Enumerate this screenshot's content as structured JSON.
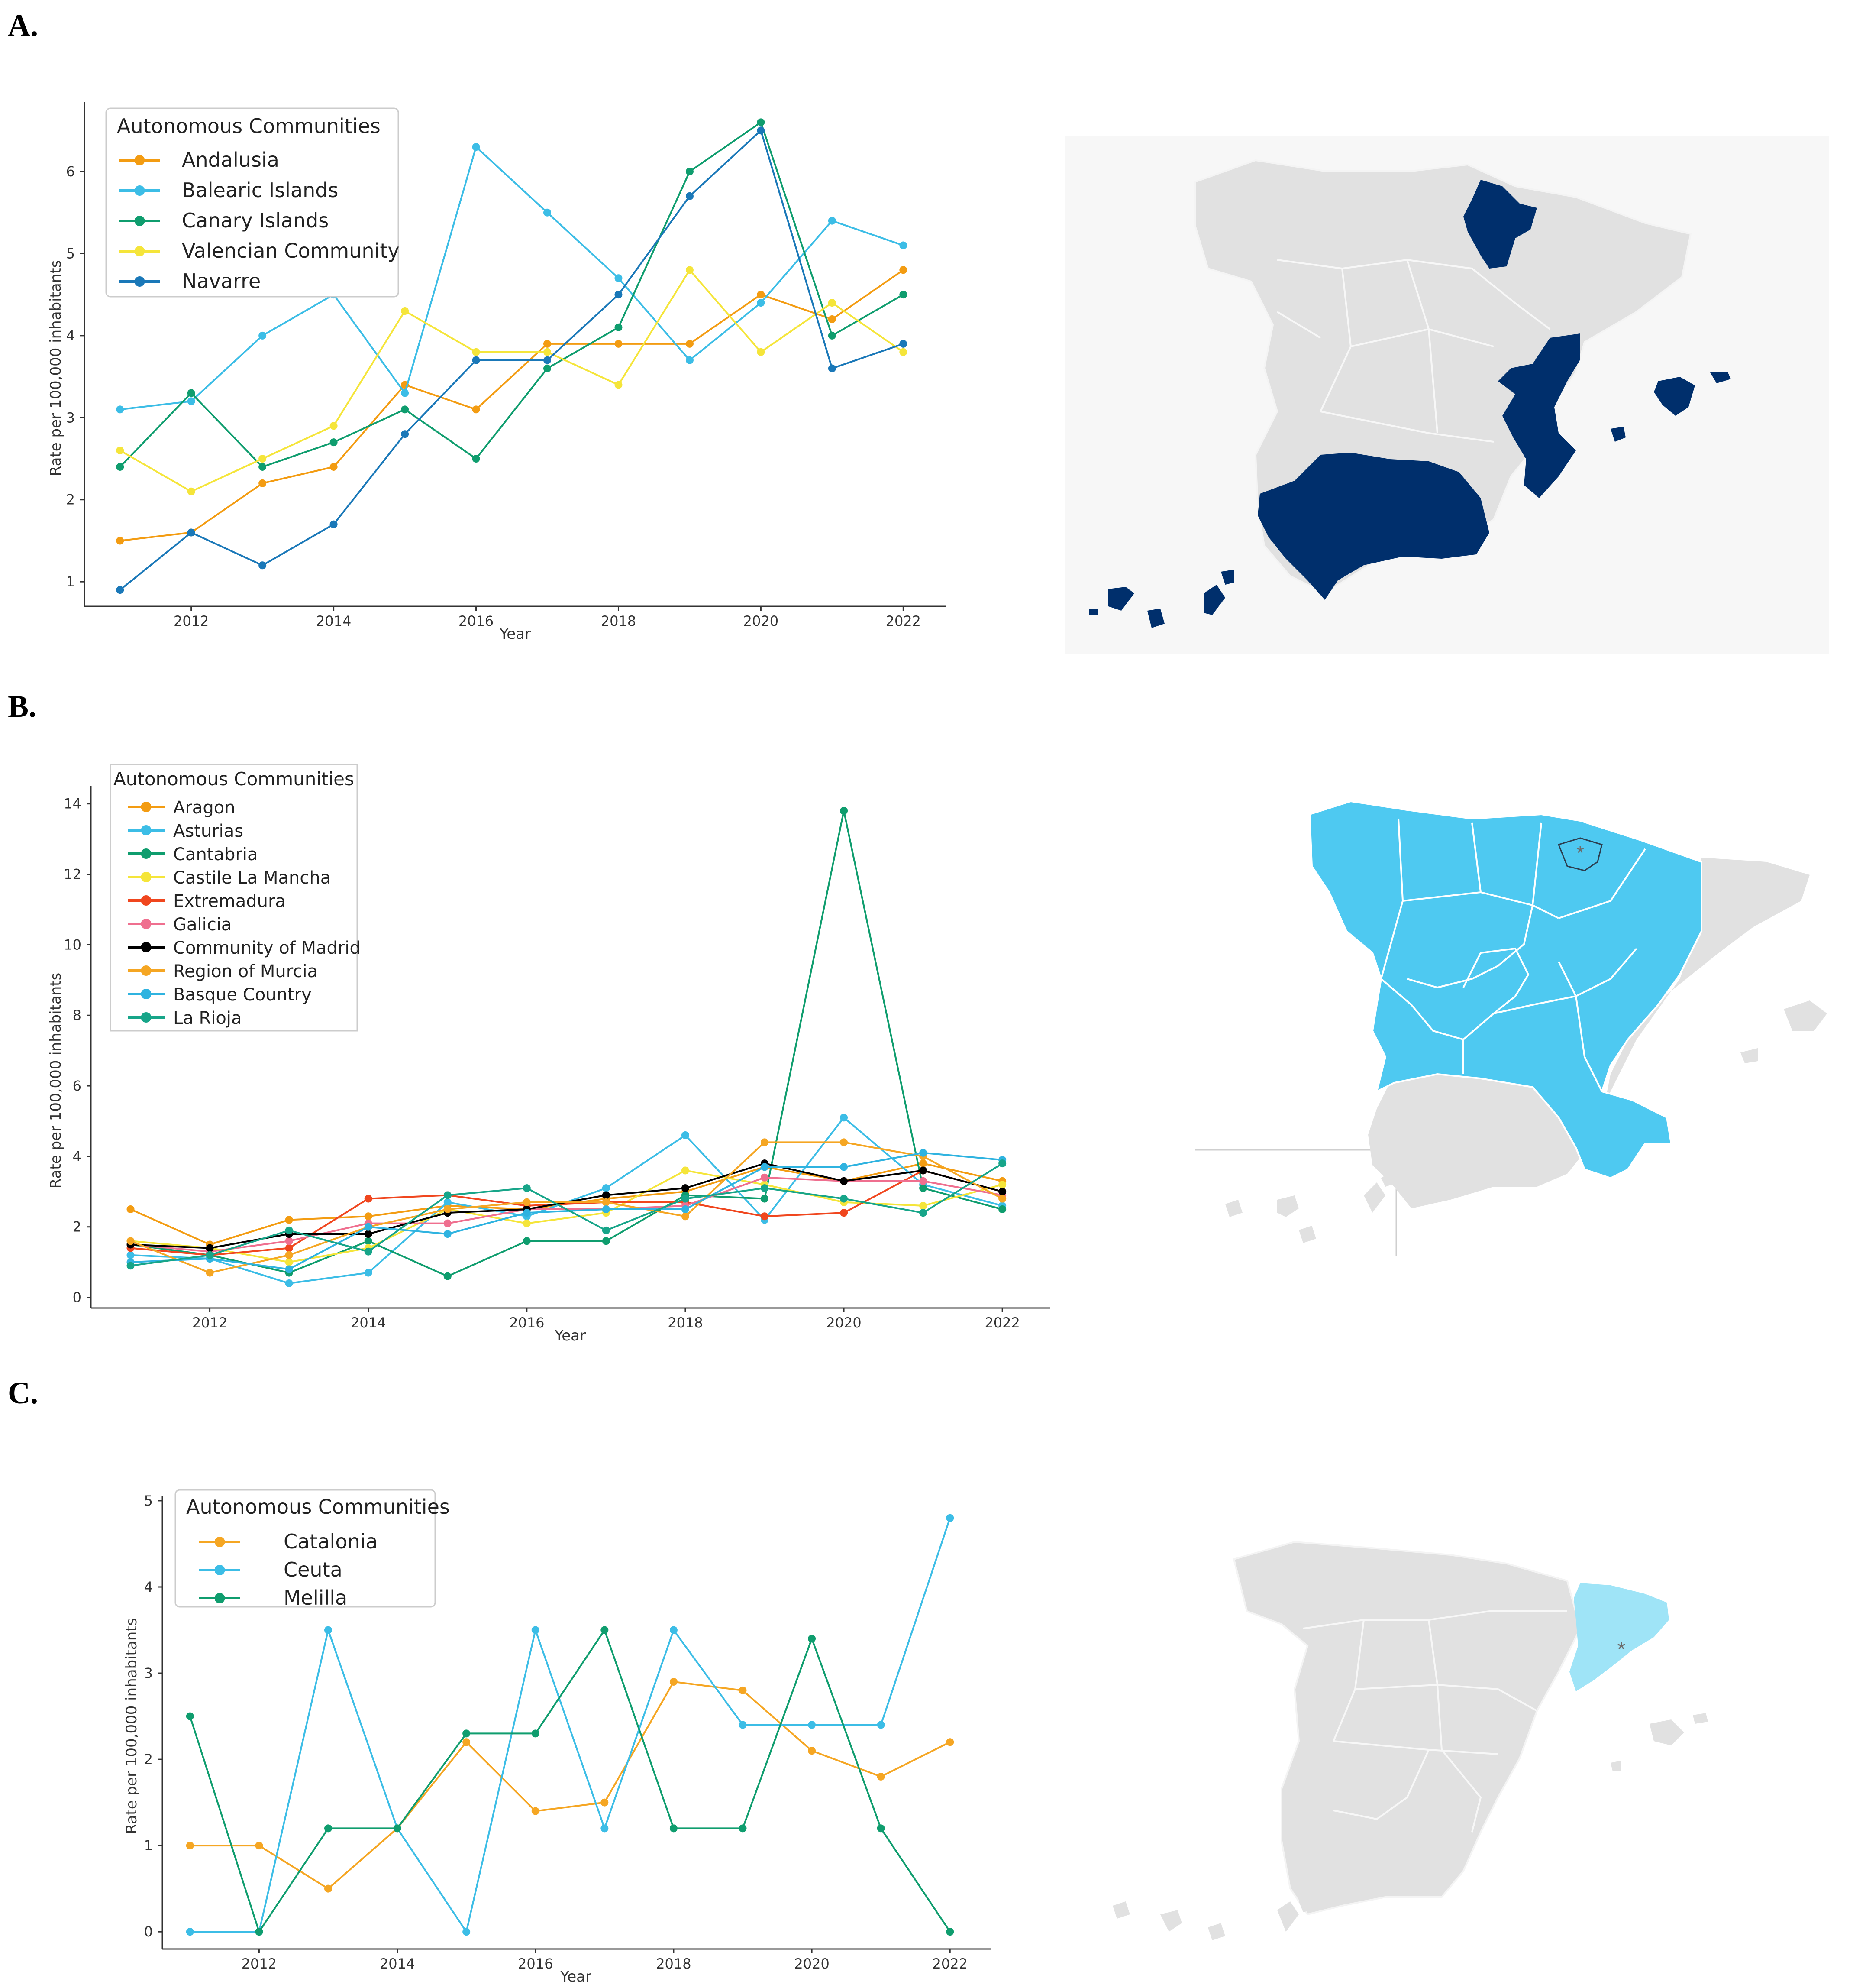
{
  "panels": [
    {
      "label": "A.",
      "chart_data": {
        "type": "line",
        "title": "",
        "xlabel": "Year",
        "ylabel": "Rate per 100,000 inhabitants",
        "legend_title": "Autonomous Communities",
        "x": [
          2011,
          2012,
          2013,
          2014,
          2015,
          2016,
          2017,
          2018,
          2019,
          2020,
          2021,
          2022
        ],
        "xticks": [
          2012,
          2014,
          2016,
          2018,
          2020,
          2022
        ],
        "yticks": [
          1,
          2,
          3,
          4,
          5,
          6
        ],
        "ylim": [
          0.7,
          6.85
        ],
        "xlim": [
          2010.5,
          2022.6
        ],
        "series": [
          {
            "name": "Andalusia",
            "color": "#f39c12",
            "values": [
              1.5,
              1.6,
              2.2,
              2.4,
              3.4,
              3.1,
              3.9,
              3.9,
              3.9,
              4.5,
              4.2,
              4.8
            ]
          },
          {
            "name": "Balearic Islands",
            "color": "#3cbde6",
            "values": [
              3.1,
              3.2,
              4.0,
              4.5,
              3.3,
              6.3,
              5.5,
              4.7,
              3.7,
              4.4,
              5.4,
              5.1
            ]
          },
          {
            "name": "Canary Islands",
            "color": "#0f9d6e",
            "values": [
              2.4,
              3.3,
              2.4,
              2.7,
              3.1,
              2.5,
              3.6,
              4.1,
              6.0,
              6.6,
              4.0,
              4.5
            ]
          },
          {
            "name": "Valencian Community",
            "color": "#f5e53a",
            "values": [
              2.6,
              2.1,
              2.5,
              2.9,
              4.3,
              3.8,
              3.8,
              3.4,
              4.8,
              3.8,
              4.4,
              3.8
            ]
          },
          {
            "name": "Navarre",
            "color": "#1a78b8",
            "values": [
              0.9,
              1.6,
              1.2,
              1.7,
              2.8,
              3.7,
              3.7,
              4.5,
              5.7,
              6.5,
              3.6,
              3.9
            ]
          }
        ]
      },
      "map": {
        "highlight_color": "#002f6c",
        "base_color": "#e1e1e1",
        "highlighted": [
          "Andalusia",
          "Balearic Islands",
          "Canary Islands",
          "Valencian Community",
          "Navarre"
        ]
      }
    },
    {
      "label": "B.",
      "chart_data": {
        "type": "line",
        "title": "",
        "xlabel": "Year",
        "ylabel": "Rate per 100,000 inhabitants",
        "legend_title": "Autonomous Communities",
        "x": [
          2011,
          2012,
          2013,
          2014,
          2015,
          2016,
          2017,
          2018,
          2019,
          2020,
          2021,
          2022
        ],
        "xticks": [
          2012,
          2014,
          2016,
          2018,
          2020,
          2022
        ],
        "yticks": [
          0,
          2,
          4,
          6,
          8,
          10,
          12,
          14
        ],
        "ylim": [
          -0.3,
          14.5
        ],
        "xlim": [
          2010.5,
          2022.6
        ],
        "series": [
          {
            "name": "Aragon",
            "color": "#f39c12",
            "values": [
              2.5,
              1.5,
              2.2,
              2.3,
              2.6,
              2.5,
              2.8,
              3.0,
              3.7,
              3.3,
              3.8,
              3.3
            ]
          },
          {
            "name": "Asturias",
            "color": "#3cbde6",
            "values": [
              1.2,
              1.1,
              0.4,
              0.7,
              2.7,
              2.3,
              3.1,
              4.6,
              2.2,
              5.1,
              3.2,
              2.6
            ]
          },
          {
            "name": "Cantabria",
            "color": "#0f9d6e",
            "values": [
              1.5,
              1.2,
              0.7,
              1.6,
              0.6,
              1.6,
              1.6,
              2.9,
              2.8,
              13.8,
              3.1,
              2.5
            ]
          },
          {
            "name": "Castile La Mancha",
            "color": "#f5e53a",
            "values": [
              1.6,
              1.4,
              1.0,
              1.4,
              2.5,
              2.1,
              2.4,
              3.6,
              3.2,
              2.7,
              2.6,
              3.2
            ]
          },
          {
            "name": "Extremadura",
            "color": "#f0461e",
            "values": [
              1.4,
              1.2,
              1.4,
              2.8,
              2.9,
              2.6,
              2.7,
              2.7,
              2.3,
              2.4,
              3.6,
              3.0
            ]
          },
          {
            "name": "Galicia",
            "color": "#ef6f8f",
            "values": [
              1.5,
              1.3,
              1.6,
              2.1,
              2.1,
              2.5,
              2.5,
              2.6,
              3.4,
              3.3,
              3.3,
              2.9
            ]
          },
          {
            "name": "Community of Madrid",
            "color": "#000000",
            "values": [
              1.5,
              1.4,
              1.8,
              1.8,
              2.4,
              2.5,
              2.9,
              3.1,
              3.8,
              3.3,
              3.6,
              3.0
            ]
          },
          {
            "name": "Region of Murcia",
            "color": "#f5a623",
            "values": [
              1.6,
              0.7,
              1.2,
              2.0,
              2.5,
              2.7,
              2.7,
              2.3,
              4.4,
              4.4,
              4.0,
              2.8
            ]
          },
          {
            "name": "Basque Country",
            "color": "#2fb3e0",
            "values": [
              1.0,
              1.1,
              0.8,
              2.0,
              1.8,
              2.4,
              2.5,
              2.5,
              3.7,
              3.7,
              4.1,
              3.9
            ]
          },
          {
            "name": "La Rioja",
            "color": "#17a589",
            "values": [
              0.9,
              1.2,
              1.9,
              1.3,
              2.9,
              3.1,
              1.9,
              2.8,
              3.1,
              2.8,
              2.4,
              3.8
            ]
          }
        ]
      },
      "map": {
        "highlight_color": "#4ec9f1",
        "base_color": "#e1e1e1",
        "marker": "*",
        "highlighted": [
          "Aragon",
          "Asturias",
          "Cantabria",
          "Castile La Mancha",
          "Extremadura",
          "Galicia",
          "Community of Madrid",
          "Region of Murcia",
          "Basque Country",
          "La Rioja"
        ]
      }
    },
    {
      "label": "C.",
      "chart_data": {
        "type": "line",
        "title": "",
        "xlabel": "Year",
        "ylabel": "Rate per 100,000 inhabitants",
        "legend_title": "Autonomous Communities",
        "x": [
          2011,
          2012,
          2013,
          2014,
          2015,
          2016,
          2017,
          2018,
          2019,
          2020,
          2021,
          2022
        ],
        "xticks": [
          2012,
          2014,
          2016,
          2018,
          2020,
          2022
        ],
        "yticks": [
          0,
          1,
          2,
          3,
          4,
          5
        ],
        "ylim": [
          -0.2,
          5.05
        ],
        "xlim": [
          2010.6,
          2022.6
        ],
        "series": [
          {
            "name": "Catalonia",
            "color": "#f5a623",
            "values": [
              1.0,
              1.0,
              0.5,
              1.2,
              2.2,
              1.4,
              1.5,
              2.9,
              2.8,
              2.1,
              1.8,
              2.2
            ]
          },
          {
            "name": "Ceuta",
            "color": "#3cbde6",
            "values": [
              0.0,
              0.0,
              3.5,
              1.2,
              0.0,
              3.5,
              1.2,
              3.5,
              2.4,
              2.4,
              2.4,
              4.8
            ]
          },
          {
            "name": "Melilla",
            "color": "#0f9d6e",
            "values": [
              2.5,
              0.0,
              1.2,
              1.2,
              2.3,
              2.3,
              3.5,
              1.2,
              1.2,
              3.4,
              1.2,
              0.0
            ]
          }
        ]
      },
      "map": {
        "highlight_color": "#9fe4f7",
        "base_color": "#e1e1e1",
        "marker": "*",
        "highlighted": [
          "Catalonia"
        ]
      }
    }
  ]
}
